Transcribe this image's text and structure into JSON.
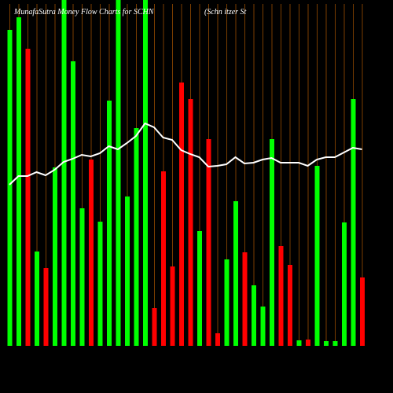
{
  "chart_data": {
    "type": "bar-line",
    "title": "MunafaSutra  Money Flow  Charts for SCHN",
    "subtitle": "(Schn                    itzer St",
    "categories": [
      null,
      null,
      null,
      null,
      null,
      null,
      null,
      null,
      null,
      null,
      null,
      null,
      null,
      null,
      null,
      null,
      null,
      null,
      null,
      null,
      null,
      null,
      null,
      null,
      null,
      null,
      null,
      null,
      null,
      null,
      null,
      null,
      null,
      null,
      null,
      null,
      null,
      null,
      null,
      null
    ],
    "ylim": [
      0,
      440
    ],
    "background": "#000000",
    "divider_color": "#7a3d00",
    "bars": {
      "values": [
        402,
        418,
        378,
        120,
        99,
        227,
        440,
        362,
        175,
        237,
        158,
        312,
        440,
        190,
        277,
        440,
        48,
        222,
        101,
        335,
        314,
        146,
        263,
        16,
        110,
        184,
        119,
        77,
        50,
        263,
        127,
        103,
        7,
        8,
        229,
        6,
        6,
        157,
        314,
        87
      ],
      "colors": [
        "#00ff00",
        "#00ff00",
        "#ff0000",
        "#00ff00",
        "#ff0000",
        "#00ff00",
        "#00ff00",
        "#00ff00",
        "#00ff00",
        "#ff0000",
        "#00ff00",
        "#00ff00",
        "#00ff00",
        "#00ff00",
        "#00ff00",
        "#00ff00",
        "#ff0000",
        "#ff0000",
        "#ff0000",
        "#ff0000",
        "#ff0000",
        "#00ff00",
        "#ff0000",
        "#ff0000",
        "#00ff00",
        "#00ff00",
        "#ff0000",
        "#00ff00",
        "#00ff00",
        "#00ff00",
        "#ff0000",
        "#ff0000",
        "#00ff00",
        "#ff0000",
        "#00ff00",
        "#00ff00",
        "#00ff00",
        "#00ff00",
        "#00ff00",
        "#ff0000"
      ]
    },
    "line": {
      "color": "#ffffff",
      "values": [
        205,
        216,
        216,
        221,
        217,
        224,
        234,
        238,
        243,
        241,
        245,
        254,
        250,
        258,
        267,
        283,
        278,
        265,
        262,
        249,
        244,
        240,
        228,
        229,
        231,
        240,
        232,
        233,
        237,
        239,
        233,
        233,
        233,
        229,
        237,
        240,
        240,
        246,
        252,
        250
      ]
    }
  }
}
